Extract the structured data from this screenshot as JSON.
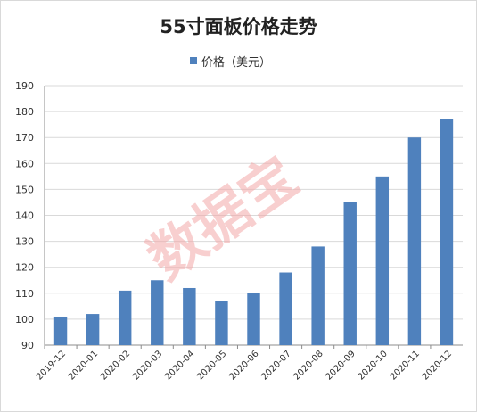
{
  "chart_data": {
    "type": "bar",
    "title": "55寸面板价格走势",
    "categories": [
      "2019-12",
      "2020-01",
      "2020-02",
      "2020-03",
      "2020-04",
      "2020-05",
      "2020-06",
      "2020-07",
      "2020-08",
      "2020-09",
      "2020-10",
      "2020-11",
      "2020-12"
    ],
    "series": [
      {
        "name": "价格（美元）",
        "values": [
          101,
          102,
          111,
          115,
          112,
          107,
          110,
          118,
          128,
          145,
          155,
          170,
          177
        ]
      }
    ],
    "yticks": [
      90,
      100,
      110,
      120,
      130,
      140,
      150,
      160,
      170,
      180,
      190
    ],
    "ylim": [
      90,
      190
    ],
    "grid": true,
    "legend_position": "top-center",
    "bar_color": "#4f81bd",
    "gridline_color": "#d9d9d9"
  },
  "watermark": "数据宝"
}
